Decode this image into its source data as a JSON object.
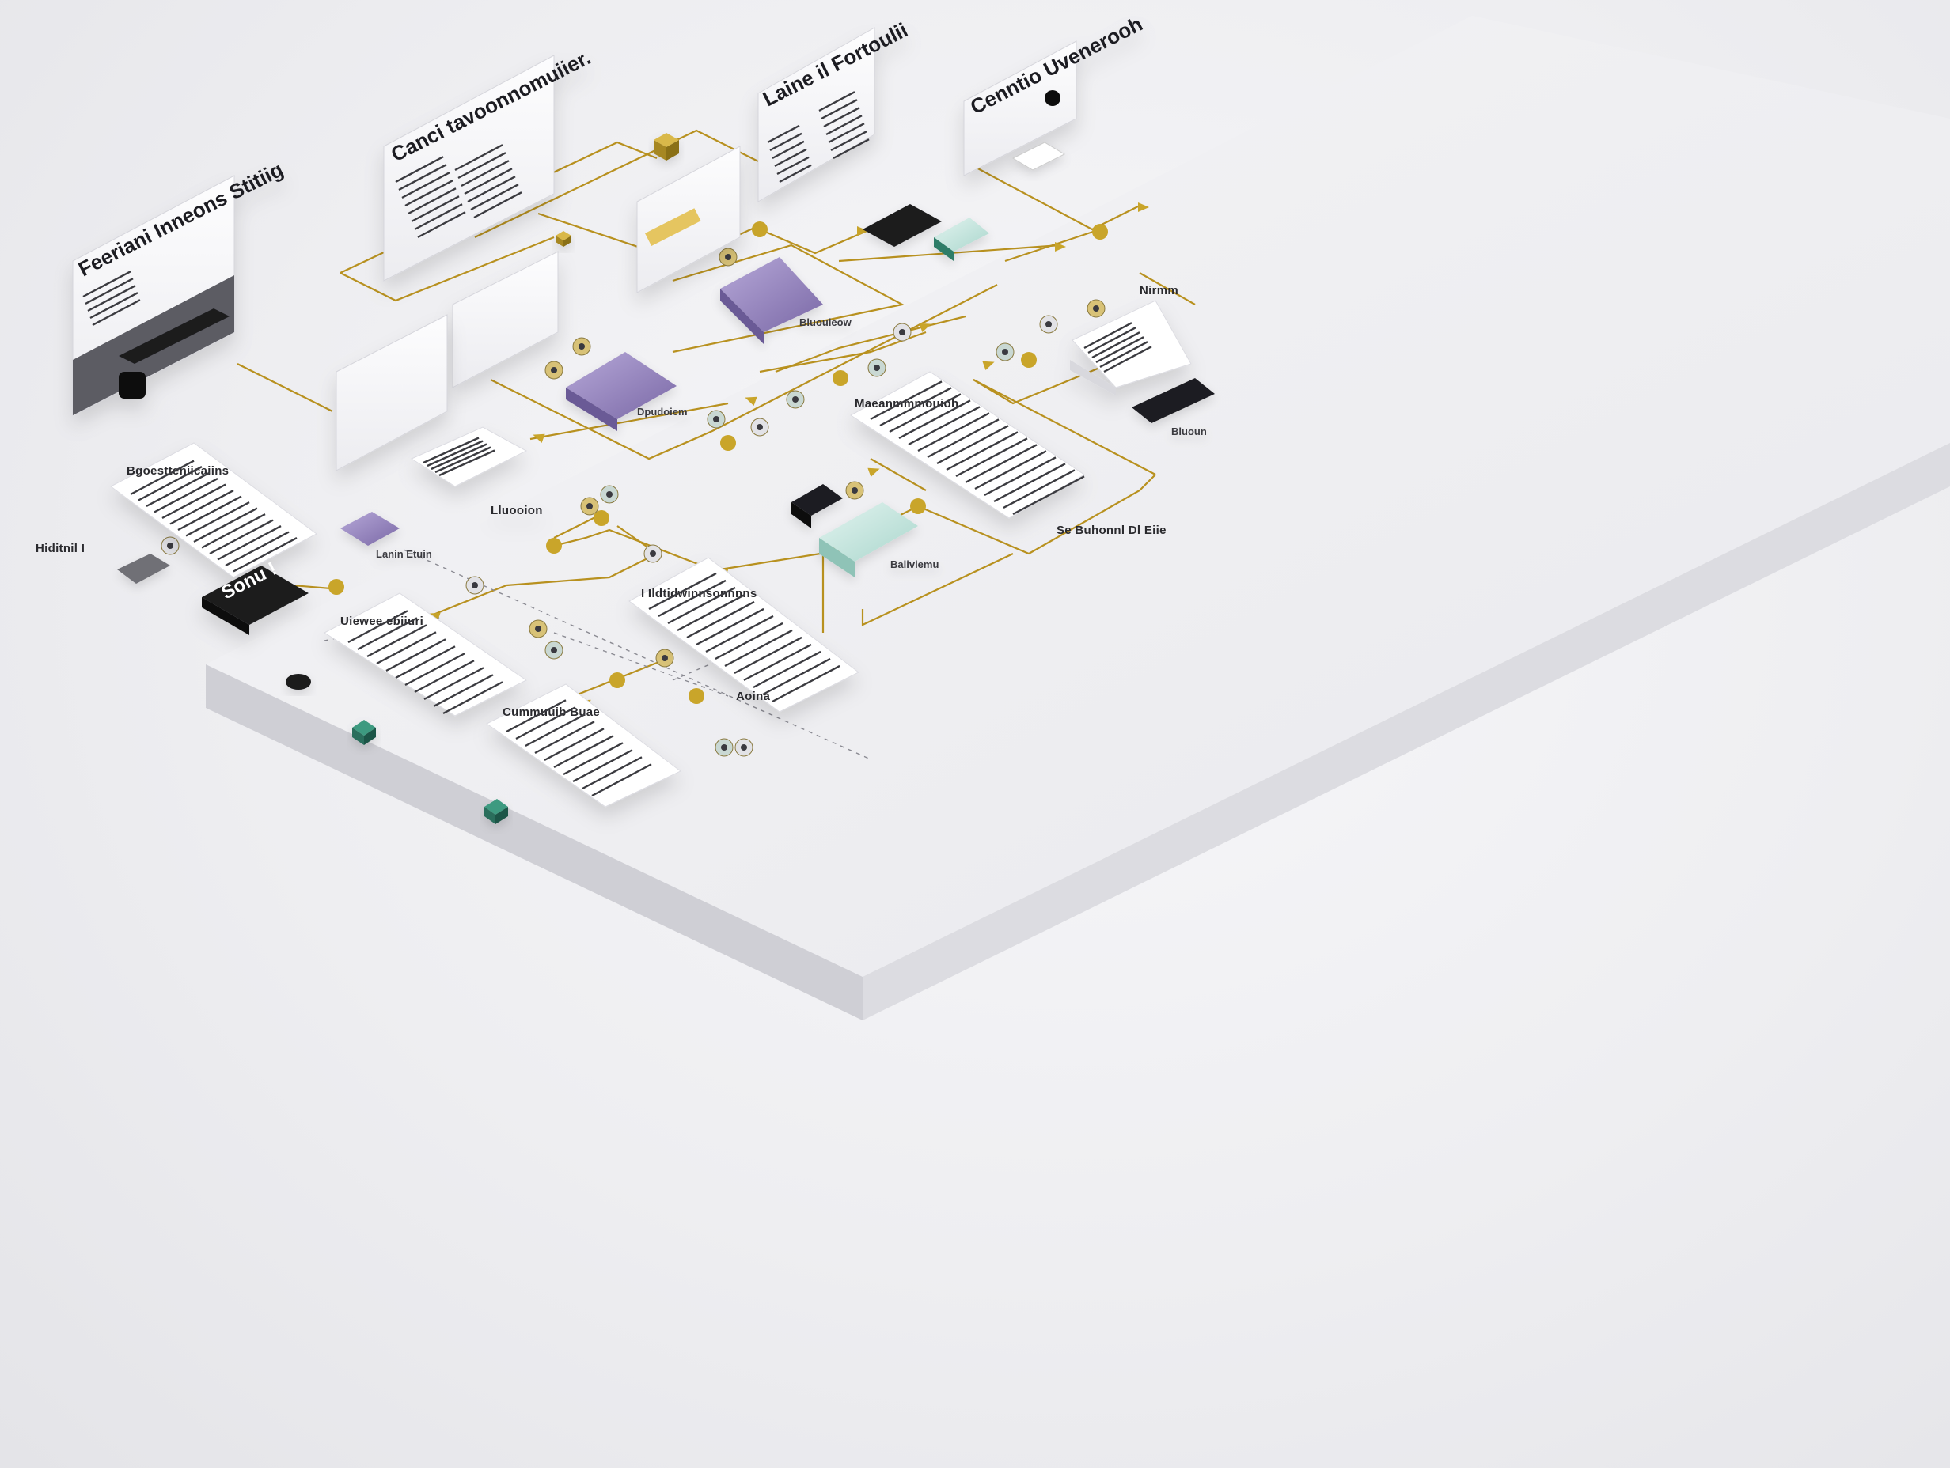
{
  "colors": {
    "platform_top": "#f1f1f3",
    "platform_side": "#d9d9de",
    "platform_front": "#c9c9cf",
    "connector_gold": "#b8911f",
    "node_gold": "#c9a52a",
    "card_purple": "#8d7bb5",
    "card_mint": "#bfe3dc",
    "card_dark": "#1b1b1f",
    "card_teal": "#2f7d68",
    "panel_white": "#fbfbfc",
    "text_dark": "#1d1d21"
  },
  "panels": {
    "p1": {
      "title": "Feeriani Inneons Stitiig"
    },
    "p2": {
      "title": "Canci tavoonnomuiier."
    },
    "p3": {
      "title": "Laine il Fortoulii"
    },
    "p4": {
      "title": "Cenntio Uvenerooh"
    }
  },
  "sheets": {
    "s1": {
      "title": "Bgoestteniicaiins"
    },
    "s2": {
      "title": "Maeanmmmouioh"
    },
    "s3": {
      "title": "Uiewee ebiiuri"
    },
    "s4": {
      "title": "I Ildtidwinnsonnnns"
    },
    "s5": {
      "title": "Cummuuib Buae"
    }
  },
  "dark_card": {
    "title": "Sonu !"
  },
  "labels": {
    "left_group": "Hiditnil I",
    "purple_node": "Dpudoiem",
    "purple_node_b": "Lanin Etuin",
    "sheet_sub": "Lluooion",
    "right_tag": "Se Buhonnl Dl Eiie",
    "mint_tag": "Baliviemu",
    "stack_tag": "Bluoun",
    "top_purple": "Bluouieow",
    "top_right_tag": "Nirmm",
    "annot_mid": "Aoina"
  }
}
